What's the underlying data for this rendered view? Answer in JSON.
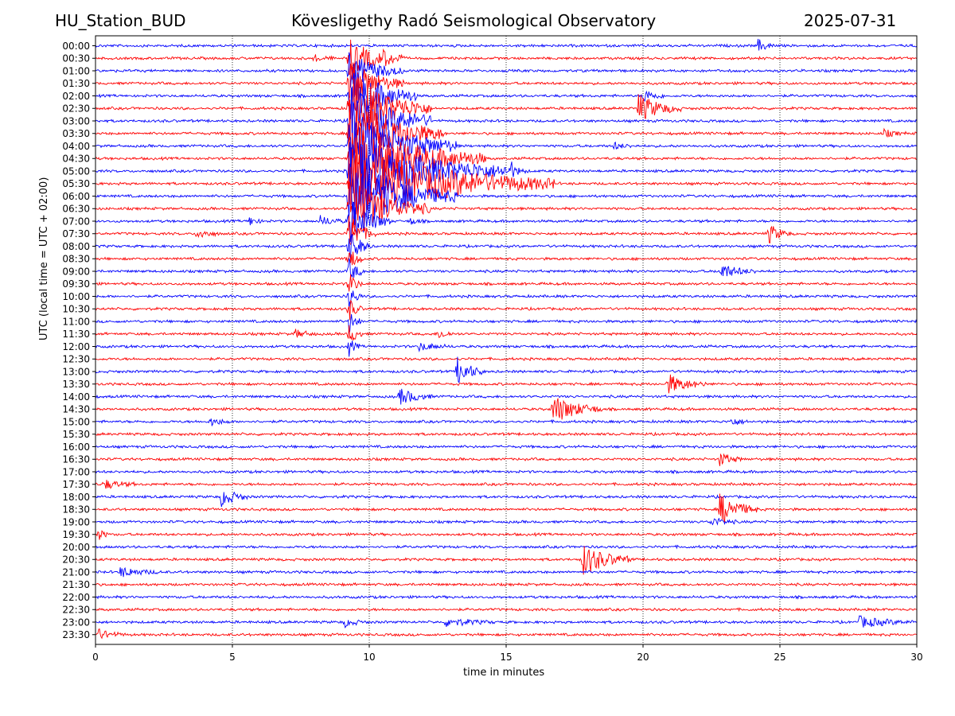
{
  "header": {
    "station": "HU_Station_BUD",
    "title": "Kövesligethy Radó Seismological Observatory",
    "date": "2025-07-31"
  },
  "chart_data": {
    "type": "line",
    "title": "Kövesligethy Radó Seismological Observatory",
    "xlabel": "time in minutes",
    "ylabel": "UTC (local time = UTC + 02:00)",
    "xlim": [
      0,
      30
    ],
    "x_ticks": [
      0,
      5,
      10,
      15,
      20,
      25,
      30
    ],
    "grid": "vertical dotted",
    "row_labels": [
      "00:00",
      "00:30",
      "01:00",
      "01:30",
      "02:00",
      "02:30",
      "03:00",
      "03:30",
      "04:00",
      "04:30",
      "05:00",
      "05:30",
      "06:00",
      "06:30",
      "07:00",
      "07:30",
      "08:00",
      "08:30",
      "09:00",
      "09:30",
      "10:00",
      "10:30",
      "11:00",
      "11:30",
      "12:00",
      "12:30",
      "13:00",
      "13:30",
      "14:00",
      "14:30",
      "15:00",
      "15:30",
      "16:00",
      "16:30",
      "17:00",
      "17:30",
      "18:00",
      "18:30",
      "19:00",
      "19:30",
      "20:00",
      "20:30",
      "21:00",
      "21:30",
      "22:00",
      "22:30",
      "23:00",
      "23:30"
    ],
    "row_colors": [
      "#0000ff",
      "#ff0000"
    ],
    "noise_amplitude": 0.18,
    "events": [
      {
        "row": 0,
        "minute": 24.2,
        "amplitude": 1.0,
        "duration": 0.7
      },
      {
        "row": 4,
        "minute": 20.0,
        "amplitude": 1.2,
        "duration": 0.8
      },
      {
        "row": 5,
        "minute": 19.8,
        "amplitude": 2.4,
        "duration": 1.6
      },
      {
        "row": 7,
        "minute": 28.8,
        "amplitude": 0.6,
        "duration": 0.8
      },
      {
        "row": 8,
        "minute": 18.9,
        "amplitude": 0.6,
        "duration": 0.8
      },
      {
        "row": 1,
        "minute": 9.25,
        "amplitude": 3.0,
        "duration": 2.0
      },
      {
        "row": 2,
        "minute": 9.25,
        "amplitude": 3.0,
        "duration": 2.0
      },
      {
        "row": 3,
        "minute": 9.25,
        "amplitude": 4.0,
        "duration": 2.0
      },
      {
        "row": 4,
        "minute": 9.25,
        "amplitude": 5.0,
        "duration": 2.5
      },
      {
        "row": 5,
        "minute": 9.25,
        "amplitude": 6.0,
        "duration": 3.0
      },
      {
        "row": 6,
        "minute": 9.25,
        "amplitude": 6.0,
        "duration": 3.0
      },
      {
        "row": 7,
        "minute": 9.25,
        "amplitude": 6.0,
        "duration": 3.5
      },
      {
        "row": 8,
        "minute": 9.25,
        "amplitude": 6.0,
        "duration": 4.0
      },
      {
        "row": 9,
        "minute": 9.25,
        "amplitude": 6.0,
        "duration": 5.0
      },
      {
        "row": 10,
        "minute": 9.25,
        "amplitude": 6.0,
        "duration": 6.0
      },
      {
        "row": 11,
        "minute": 9.25,
        "amplitude": 6.0,
        "duration": 7.5
      },
      {
        "row": 12,
        "minute": 9.25,
        "amplitude": 6.0,
        "duration": 4.0
      },
      {
        "row": 13,
        "minute": 9.25,
        "amplitude": 5.0,
        "duration": 3.0
      },
      {
        "row": 14,
        "minute": 9.25,
        "amplitude": 4.0,
        "duration": 1.5
      },
      {
        "row": 15,
        "minute": 9.25,
        "amplitude": 3.0,
        "duration": 1.0
      },
      {
        "row": 16,
        "minute": 9.25,
        "amplitude": 3.0,
        "duration": 0.8
      },
      {
        "row": 17,
        "minute": 9.25,
        "amplitude": 2.0,
        "duration": 0.6
      },
      {
        "row": 18,
        "minute": 9.25,
        "amplitude": 2.0,
        "duration": 0.6
      },
      {
        "row": 19,
        "minute": 9.25,
        "amplitude": 2.0,
        "duration": 0.5
      },
      {
        "row": 20,
        "minute": 9.25,
        "amplitude": 2.0,
        "duration": 0.5
      },
      {
        "row": 21,
        "minute": 9.25,
        "amplitude": 2.0,
        "duration": 0.5
      },
      {
        "row": 22,
        "minute": 9.25,
        "amplitude": 2.0,
        "duration": 0.5
      },
      {
        "row": 23,
        "minute": 9.25,
        "amplitude": 2.0,
        "duration": 0.5
      },
      {
        "row": 24,
        "minute": 9.25,
        "amplitude": 1.5,
        "duration": 0.4
      },
      {
        "row": 1,
        "minute": 8.0,
        "amplitude": 0.5,
        "duration": 0.7
      },
      {
        "row": 1,
        "minute": 10.5,
        "amplitude": 0.6,
        "duration": 0.8
      },
      {
        "row": 10,
        "minute": 15.2,
        "amplitude": 1.0,
        "duration": 0.6
      },
      {
        "row": 14,
        "minute": 5.6,
        "amplitude": 0.8,
        "duration": 0.5
      },
      {
        "row": 14,
        "minute": 8.2,
        "amplitude": 0.8,
        "duration": 1.0
      },
      {
        "row": 14,
        "minute": 11.5,
        "amplitude": 0.6,
        "duration": 0.5
      },
      {
        "row": 15,
        "minute": 3.7,
        "amplitude": 0.9,
        "duration": 0.8
      },
      {
        "row": 15,
        "minute": 24.6,
        "amplitude": 1.6,
        "duration": 0.8
      },
      {
        "row": 18,
        "minute": 22.8,
        "amplitude": 1.3,
        "duration": 1.3
      },
      {
        "row": 23,
        "minute": 7.3,
        "amplitude": 0.7,
        "duration": 0.8
      },
      {
        "row": 23,
        "minute": 12.5,
        "amplitude": 0.9,
        "duration": 0.6
      },
      {
        "row": 24,
        "minute": 11.8,
        "amplitude": 0.7,
        "duration": 1.2
      },
      {
        "row": 26,
        "minute": 13.2,
        "amplitude": 2.4,
        "duration": 1.0
      },
      {
        "row": 27,
        "minute": 20.9,
        "amplitude": 1.6,
        "duration": 1.4
      },
      {
        "row": 28,
        "minute": 11.1,
        "amplitude": 1.4,
        "duration": 1.2
      },
      {
        "row": 29,
        "minute": 16.7,
        "amplitude": 2.4,
        "duration": 1.8
      },
      {
        "row": 30,
        "minute": 4.2,
        "amplitude": 0.7,
        "duration": 0.8
      },
      {
        "row": 30,
        "minute": 23.2,
        "amplitude": 0.7,
        "duration": 0.7
      },
      {
        "row": 33,
        "minute": 22.8,
        "amplitude": 1.2,
        "duration": 0.8
      },
      {
        "row": 35,
        "minute": 0.3,
        "amplitude": 0.8,
        "duration": 1.2
      },
      {
        "row": 36,
        "minute": 4.6,
        "amplitude": 1.6,
        "duration": 1.0
      },
      {
        "row": 37,
        "minute": 22.8,
        "amplitude": 2.6,
        "duration": 1.4
      },
      {
        "row": 38,
        "minute": 22.5,
        "amplitude": 0.7,
        "duration": 1.0
      },
      {
        "row": 39,
        "minute": 0.1,
        "amplitude": 1.0,
        "duration": 0.4
      },
      {
        "row": 41,
        "minute": 17.8,
        "amplitude": 2.6,
        "duration": 1.8
      },
      {
        "row": 42,
        "minute": 0.9,
        "amplitude": 0.8,
        "duration": 1.5
      },
      {
        "row": 46,
        "minute": 9.1,
        "amplitude": 0.7,
        "duration": 0.8
      },
      {
        "row": 46,
        "minute": 12.8,
        "amplitude": 0.7,
        "duration": 1.8
      },
      {
        "row": 46,
        "minute": 27.9,
        "amplitude": 0.9,
        "duration": 2.0
      },
      {
        "row": 47,
        "minute": 0.1,
        "amplitude": 0.8,
        "duration": 1.0
      }
    ]
  }
}
